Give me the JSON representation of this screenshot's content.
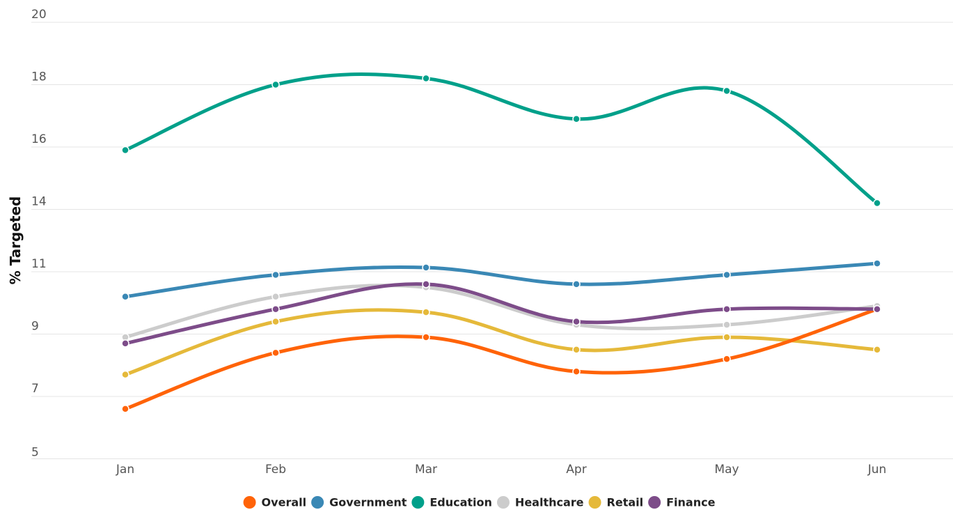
{
  "chart_data": {
    "type": "line",
    "title": "",
    "xlabel": "",
    "ylabel": "% Targeted",
    "categories": [
      "Jan",
      "Feb",
      "Mar",
      "Apr",
      "May",
      "Jun"
    ],
    "y_ticks": [
      "5",
      "7",
      "9",
      "11",
      "14",
      "16",
      "18",
      "20"
    ],
    "grid": true,
    "legend_position": "bottom-center",
    "series": [
      {
        "name": "Overall",
        "color": "#ff6308",
        "values": [
          6.6,
          8.4,
          8.9,
          7.8,
          8.2,
          9.8
        ]
      },
      {
        "name": "Government",
        "color": "#3a88b5",
        "values": [
          10.2,
          10.9,
          11.2,
          10.6,
          10.9,
          11.4
        ]
      },
      {
        "name": "Education",
        "color": "#00a08a",
        "values": [
          15.9,
          18.0,
          18.2,
          16.9,
          17.8,
          14.2
        ]
      },
      {
        "name": "Healthcare",
        "color": "#cccccc",
        "values": [
          8.9,
          10.2,
          10.5,
          9.3,
          9.3,
          9.9
        ]
      },
      {
        "name": "Retail",
        "color": "#e5b93a",
        "values": [
          7.7,
          9.4,
          9.7,
          8.5,
          8.9,
          8.5
        ]
      },
      {
        "name": "Finance",
        "color": "#7d4c89",
        "values": [
          8.7,
          9.8,
          10.6,
          9.4,
          9.8,
          9.8
        ]
      }
    ]
  }
}
